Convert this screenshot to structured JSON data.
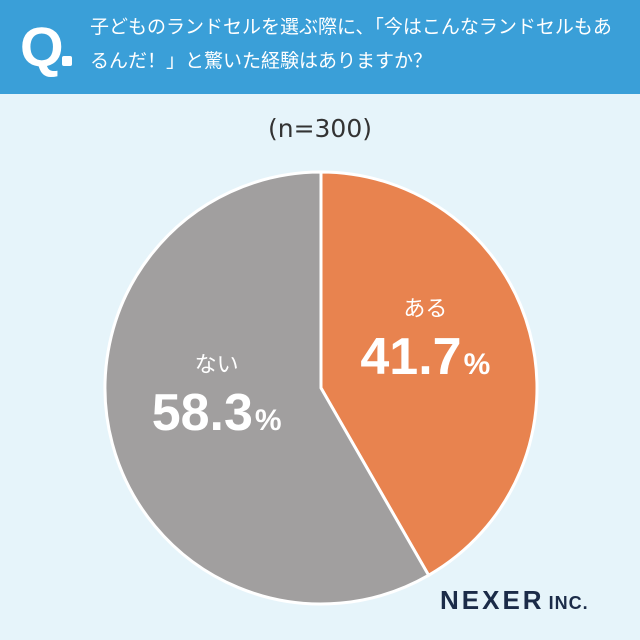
{
  "header": {
    "q_mark": "Q",
    "question": "子どものランドセルを選ぶ際に、「今はこんなランドセルもあるんだ！」と驚いた経験はありますか？"
  },
  "sample_size": "(n=300)",
  "colors": {
    "header": "#3a9fd8",
    "background": "#e6f4fa",
    "aru": "#e8834f",
    "nai": "#a19f9f"
  },
  "chart_data": {
    "type": "pie",
    "title": "子どものランドセルを選ぶ際に、「今はこんなランドセルもあるんだ！」と驚いた経験はありますか？",
    "subtitle": "(n=300)",
    "slices": [
      {
        "label": "ある",
        "value": 41.7,
        "value_label": "41.7",
        "unit": "%",
        "color": "#e8834f"
      },
      {
        "label": "ない",
        "value": 58.3,
        "value_label": "58.3",
        "unit": "%",
        "color": "#a19f9f"
      }
    ],
    "start": "12 o'clock, clockwise"
  },
  "logo": {
    "name": "NEXER",
    "suffix": "INC."
  }
}
